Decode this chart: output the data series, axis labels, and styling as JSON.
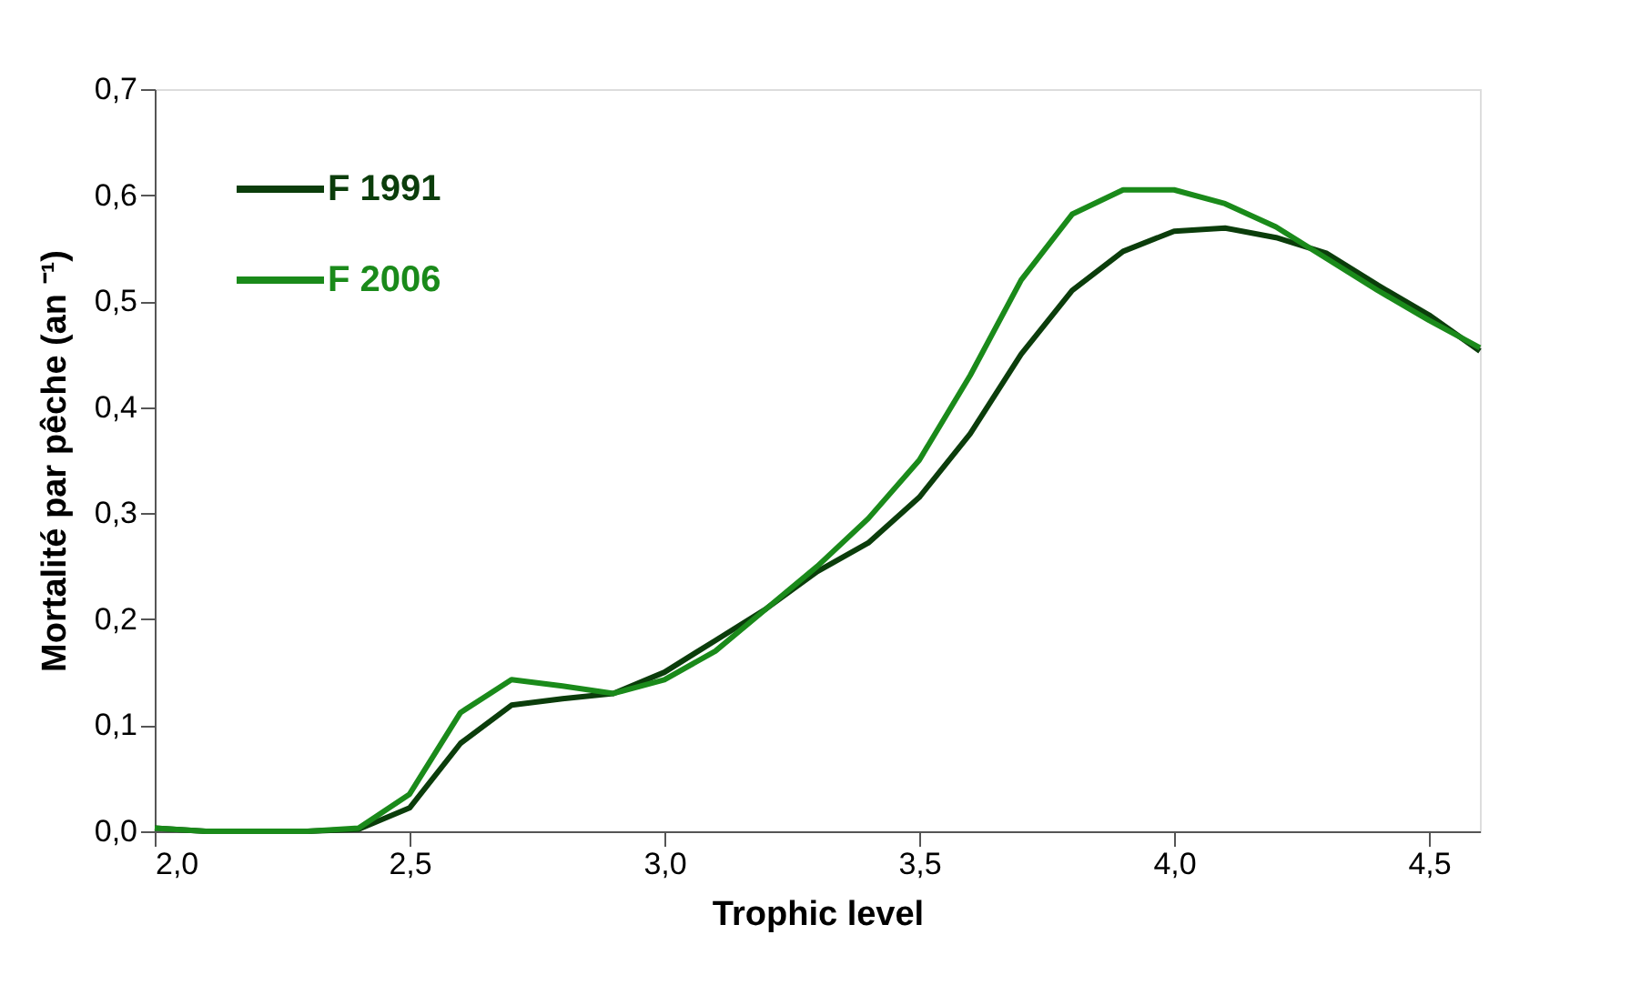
{
  "chart_data": {
    "type": "line",
    "xlabel": "Trophic level",
    "ylabel": "Mortalité par pêche (an ⁻¹)",
    "x": [
      2.0,
      2.1,
      2.2,
      2.3,
      2.4,
      2.5,
      2.6,
      2.7,
      2.8,
      2.9,
      3.0,
      3.1,
      3.2,
      3.3,
      3.4,
      3.5,
      3.6,
      3.7,
      3.8,
      3.9,
      4.0,
      4.1,
      4.2,
      4.3,
      4.4,
      4.5,
      4.6
    ],
    "series": [
      {
        "name": "F 1991",
        "color": "#0b3d0b",
        "values": [
          0.003,
          0,
          0,
          0,
          0.002,
          0.022,
          0.083,
          0.119,
          0.125,
          0.13,
          0.15,
          0.18,
          0.21,
          0.245,
          0.272,
          0.315,
          0.375,
          0.45,
          0.51,
          0.547,
          0.566,
          0.569,
          0.56,
          0.545,
          0.515,
          0.487,
          0.453
        ]
      },
      {
        "name": "F 2006",
        "color": "#1a8a1a",
        "values": [
          0.003,
          0,
          0,
          0,
          0.003,
          0.035,
          0.112,
          0.143,
          0.137,
          0.13,
          0.143,
          0.17,
          0.21,
          0.25,
          0.295,
          0.35,
          0.43,
          0.52,
          0.582,
          0.605,
          0.605,
          0.592,
          0.57,
          0.54,
          0.51,
          0.482,
          0.456
        ]
      }
    ],
    "xlim": [
      2.0,
      4.6
    ],
    "ylim": [
      0,
      0.7
    ],
    "xticks": [
      {
        "value": 2.0,
        "label": "2,0"
      },
      {
        "value": 2.5,
        "label": "2,5"
      },
      {
        "value": 3.0,
        "label": "3,0"
      },
      {
        "value": 3.5,
        "label": "3,5"
      },
      {
        "value": 4.0,
        "label": "4,0"
      },
      {
        "value": 4.5,
        "label": "4,5"
      }
    ],
    "yticks": [
      {
        "value": 0,
        "label": "0,0"
      },
      {
        "value": 0.1,
        "label": "0,1"
      },
      {
        "value": 0.2,
        "label": "0,2"
      },
      {
        "value": 0.3,
        "label": "0,3"
      },
      {
        "value": 0.4,
        "label": "0,4"
      },
      {
        "value": 0.5,
        "label": "0,5"
      },
      {
        "value": 0.6,
        "label": "0,6"
      },
      {
        "value": 0.7,
        "label": "0,7"
      }
    ],
    "grid": false,
    "legend": "top left",
    "marker": "none",
    "line_style": "solid"
  }
}
